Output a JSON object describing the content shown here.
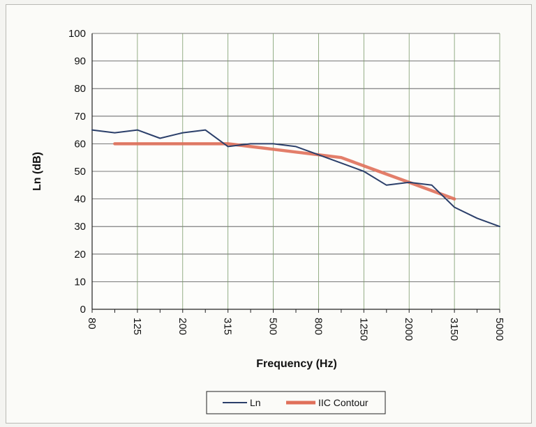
{
  "chart_data": {
    "type": "line",
    "xlabel": "Frequency (Hz)",
    "ylabel": "Ln (dB)",
    "ylim": [
      0,
      100
    ],
    "yticks": [
      0,
      10,
      20,
      30,
      40,
      50,
      60,
      70,
      80,
      90,
      100
    ],
    "x_categories": [
      "80",
      "100",
      "125",
      "160",
      "200",
      "250",
      "315",
      "400",
      "500",
      "630",
      "800",
      "1000",
      "1250",
      "1600",
      "2000",
      "2500",
      "3150",
      "4000",
      "5000"
    ],
    "x_tick_labels": [
      "80",
      "125",
      "200",
      "315",
      "500",
      "800",
      "1250",
      "2000",
      "3150",
      "5000"
    ],
    "grid": true,
    "legend_position": "bottom",
    "series": [
      {
        "name": "Ln",
        "color": "#2b3f6a",
        "x": [
          "80",
          "100",
          "125",
          "160",
          "200",
          "250",
          "315",
          "400",
          "500",
          "630",
          "800",
          "1000",
          "1250",
          "1600",
          "2000",
          "2500",
          "3150",
          "4000",
          "5000"
        ],
        "values": [
          65,
          64,
          65,
          62,
          64,
          65,
          59,
          60,
          60,
          59,
          56,
          53,
          50,
          45,
          46,
          45,
          37,
          33,
          30
        ]
      },
      {
        "name": "IIC Contour",
        "color": "#e0705a",
        "x": [
          "100",
          "125",
          "160",
          "200",
          "250",
          "315",
          "400",
          "500",
          "630",
          "800",
          "1000",
          "1250",
          "1600",
          "2000",
          "2500",
          "3150"
        ],
        "values": [
          60,
          60,
          60,
          60,
          60,
          60,
          59,
          58,
          57,
          56,
          55,
          52,
          49,
          46,
          43,
          40
        ]
      }
    ]
  }
}
